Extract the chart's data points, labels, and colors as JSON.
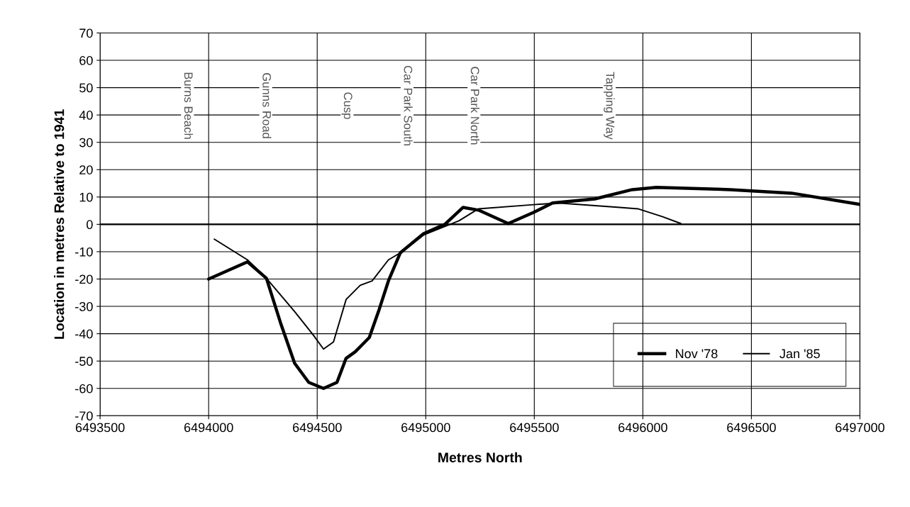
{
  "chart_data": {
    "type": "line",
    "xlabel": "Metres North",
    "ylabel": "Location in metres Relative to 1941",
    "xlim": [
      6493500,
      6497000
    ],
    "xticks": [
      6493500,
      6494000,
      6494500,
      6495000,
      6495500,
      6496000,
      6496500,
      6497000
    ],
    "ylim": [
      -70,
      70
    ],
    "yticks": [
      -70,
      -60,
      -50,
      -40,
      -30,
      -20,
      -10,
      0,
      10,
      20,
      30,
      40,
      50,
      60,
      70
    ],
    "grid": true,
    "legend": "lower right",
    "marker": "none",
    "line_style": "solid",
    "series": [
      {
        "name": "Nov '78",
        "color": "#000000",
        "x": [
          6494000,
          6494179,
          6494266,
          6494331,
          6494396,
          6494461,
          6494529,
          6494591,
          6494633,
          6494675,
          6494740,
          6494786,
          6494828,
          6494883,
          6494990,
          6495088,
          6495172,
          6495243,
          6495380,
          6495497,
          6495584,
          6495779,
          6495951,
          6496062,
          6496403,
          6496685,
          6497000
        ],
        "values": [
          -20,
          -13.7,
          -19.7,
          -36,
          -50.8,
          -57.8,
          -60,
          -57.8,
          -49,
          -46.6,
          -41.4,
          -31,
          -20.7,
          -10.4,
          -3.4,
          0,
          6.2,
          5.2,
          0.3,
          4.4,
          7.8,
          9.3,
          12.7,
          13.5,
          12.7,
          11.4,
          7.3
        ]
      },
      {
        "name": "Jan '85",
        "color": "#000000",
        "x": [
          6494026,
          6494179,
          6494266,
          6494396,
          6494481,
          6494529,
          6494575,
          6494633,
          6494698,
          6494753,
          6494828,
          6494883,
          6494990,
          6495153,
          6495243,
          6495497,
          6495610,
          6495893,
          6495977,
          6496091,
          6496175
        ],
        "values": [
          -5.4,
          -13,
          -19.7,
          -31.9,
          -40.4,
          -45.6,
          -43,
          -27.5,
          -22.3,
          -20.7,
          -13,
          -10.4,
          -3.9,
          1.3,
          5.7,
          7.2,
          7.8,
          6.2,
          5.7,
          2.8,
          0.3
        ]
      }
    ],
    "annotations": [
      "Burns Beach",
      "Gunns Road",
      "Cusp",
      "Car Park South",
      "Car Park North",
      "Tapping Way"
    ]
  }
}
